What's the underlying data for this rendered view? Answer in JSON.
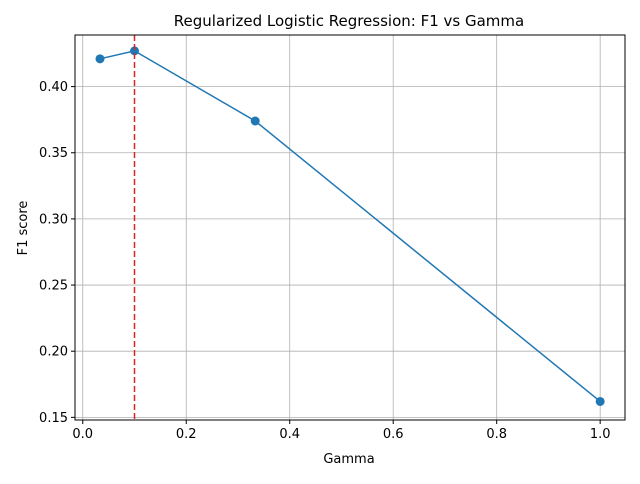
{
  "chart_data": {
    "type": "line",
    "title": "Regularized Logistic Regression: F1 vs Gamma",
    "xlabel": "Gamma",
    "ylabel": "F1 score",
    "xlim": [
      -0.015,
      1.048
    ],
    "ylim": [
      0.148,
      0.439
    ],
    "xticks": [
      0.0,
      0.2,
      0.4,
      0.6,
      0.8,
      1.0
    ],
    "xtick_labels": [
      "0.0",
      "0.2",
      "0.4",
      "0.6",
      "0.8",
      "1.0"
    ],
    "yticks": [
      0.15,
      0.2,
      0.25,
      0.3,
      0.35,
      0.4
    ],
    "ytick_labels": [
      "0.15",
      "0.20",
      "0.25",
      "0.30",
      "0.35",
      "0.40"
    ],
    "grid": true,
    "series": [
      {
        "x": [
          0.0333,
          0.1,
          0.3333,
          1.0
        ],
        "y": [
          0.421,
          0.427,
          0.374,
          0.162
        ],
        "color": "#1f77b4",
        "marker": "circle"
      }
    ],
    "vline": {
      "x": 0.1,
      "color": "#d62728",
      "style": "dashed"
    }
  }
}
